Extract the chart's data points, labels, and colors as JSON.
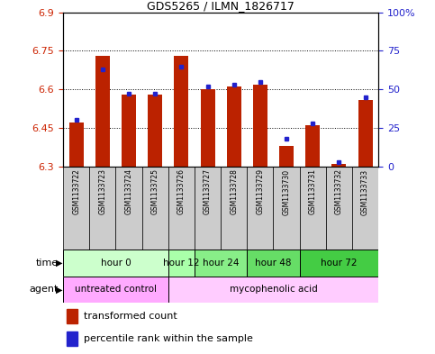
{
  "title": "GDS5265 / ILMN_1826717",
  "samples": [
    "GSM1133722",
    "GSM1133723",
    "GSM1133724",
    "GSM1133725",
    "GSM1133726",
    "GSM1133727",
    "GSM1133728",
    "GSM1133729",
    "GSM1133730",
    "GSM1133731",
    "GSM1133732",
    "GSM1133733"
  ],
  "red_values": [
    6.47,
    6.73,
    6.58,
    6.58,
    6.73,
    6.6,
    6.61,
    6.62,
    6.38,
    6.46,
    6.31,
    6.56
  ],
  "blue_percentiles": [
    30,
    63,
    47,
    47,
    65,
    52,
    53,
    55,
    18,
    28,
    3,
    45
  ],
  "y_min": 6.3,
  "y_max": 6.9,
  "y_ticks": [
    6.3,
    6.45,
    6.6,
    6.75,
    6.9
  ],
  "y2_ticks": [
    0,
    25,
    50,
    75,
    100
  ],
  "bar_color": "#bb2200",
  "dot_color": "#2222cc",
  "bg_color": "#ffffff",
  "grid_ticks": [
    6.45,
    6.6,
    6.75
  ],
  "time_groups": [
    {
      "label": "hour 0",
      "start": 0,
      "end": 4,
      "color": "#ccffcc"
    },
    {
      "label": "hour 12",
      "start": 4,
      "end": 5,
      "color": "#aaffaa"
    },
    {
      "label": "hour 24",
      "start": 5,
      "end": 7,
      "color": "#88ee88"
    },
    {
      "label": "hour 48",
      "start": 7,
      "end": 9,
      "color": "#66dd66"
    },
    {
      "label": "hour 72",
      "start": 9,
      "end": 12,
      "color": "#44cc44"
    }
  ],
  "agent_groups": [
    {
      "label": "untreated control",
      "start": 0,
      "end": 4,
      "color": "#ffaaff"
    },
    {
      "label": "mycophenolic acid",
      "start": 4,
      "end": 12,
      "color": "#ffccff"
    }
  ],
  "legend_items": [
    {
      "label": "transformed count",
      "color": "#bb2200"
    },
    {
      "label": "percentile rank within the sample",
      "color": "#2222cc"
    }
  ]
}
